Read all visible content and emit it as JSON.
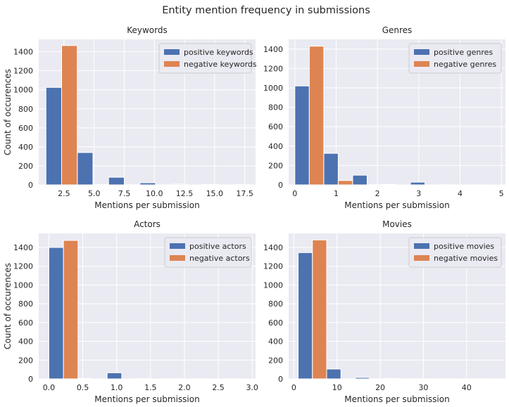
{
  "figure": {
    "suptitle": "Entity mention frequency in submissions"
  },
  "colors": {
    "positive": "#4C72B0",
    "negative": "#DD8452",
    "background": "#EAEAF2",
    "grid": "#FFFFFF"
  },
  "chart_data": [
    {
      "type": "bar",
      "title": "Keywords",
      "xlabel": "Mentions per submission",
      "ylabel": "Count of occurences",
      "xlim": [
        0.4,
        18.4
      ],
      "ylim": [
        0,
        1530
      ],
      "xticks": [
        2.5,
        5.0,
        7.5,
        10.0,
        12.5,
        15.0,
        17.5
      ],
      "xtick_labels": [
        "2.5",
        "5.0",
        "7.5",
        "10.0",
        "12.5",
        "15.0",
        "17.5"
      ],
      "yticks": [
        0,
        200,
        400,
        600,
        800,
        1000,
        1200,
        1400
      ],
      "bin_edges": [
        1,
        3.6,
        6.2,
        8.8,
        11.4,
        14,
        16.6,
        19.2
      ],
      "series": [
        {
          "name": "positive keywords",
          "values": [
            1025,
            340,
            80,
            22,
            8,
            5,
            3
          ]
        },
        {
          "name": "negative keywords",
          "values": [
            1465,
            5,
            2,
            1,
            0,
            0,
            0
          ]
        }
      ],
      "legend": "top-right",
      "grid": true
    },
    {
      "type": "bar",
      "title": "Genres",
      "xlabel": "Mentions per submission",
      "ylabel": "",
      "xlim": [
        -0.15,
        5.1
      ],
      "ylim": [
        0,
        1500
      ],
      "xticks": [
        0,
        1,
        2,
        3,
        4,
        5
      ],
      "xtick_labels": [
        "0",
        "1",
        "2",
        "3",
        "4",
        "5"
      ],
      "yticks": [
        0,
        200,
        400,
        600,
        800,
        1000,
        1200,
        1400
      ],
      "bin_edges": [
        0,
        0.7,
        1.4,
        2.1,
        2.8,
        3.5,
        4.2,
        4.9
      ],
      "series": [
        {
          "name": "positive genres",
          "values": [
            1020,
            325,
            100,
            5,
            28,
            2,
            1
          ]
        },
        {
          "name": "negative genres",
          "values": [
            1430,
            45,
            2,
            0,
            0,
            0,
            0
          ]
        }
      ],
      "legend": "top-right",
      "grid": true
    },
    {
      "type": "bar",
      "title": "Actors",
      "xlabel": "Mentions per submission",
      "ylabel": "Count of occurences",
      "xlim": [
        -0.15,
        3.05
      ],
      "ylim": [
        0,
        1550
      ],
      "xticks": [
        0.0,
        0.5,
        1.0,
        1.5,
        2.0,
        2.5,
        3.0
      ],
      "xtick_labels": [
        "0.0",
        "0.5",
        "1.0",
        "1.5",
        "2.0",
        "2.5",
        "3.0"
      ],
      "yticks": [
        0,
        200,
        400,
        600,
        800,
        1000,
        1200,
        1400
      ],
      "bin_edges": [
        0,
        0.43,
        0.86,
        1.29,
        1.72,
        2.15,
        2.58,
        3.01
      ],
      "series": [
        {
          "name": "positive actors",
          "values": [
            1400,
            5,
            65,
            3,
            2,
            1,
            1
          ]
        },
        {
          "name": "negative actors",
          "values": [
            1475,
            0,
            0,
            0,
            0,
            0,
            0
          ]
        }
      ],
      "legend": "top-right",
      "grid": true
    },
    {
      "type": "bar",
      "title": "Movies",
      "xlabel": "Mentions per submission",
      "ylabel": "",
      "xlim": [
        -1.2,
        49
      ],
      "ylim": [
        0,
        1550
      ],
      "xticks": [
        0,
        10,
        20,
        30,
        40
      ],
      "xtick_labels": [
        "0",
        "10",
        "20",
        "30",
        "40"
      ],
      "yticks": [
        0,
        200,
        400,
        600,
        800,
        1000,
        1200,
        1400
      ],
      "bin_edges": [
        1,
        7.6,
        14.2,
        20.8,
        27.4,
        34,
        40.6,
        47.2
      ],
      "series": [
        {
          "name": "positive movies",
          "values": [
            1345,
            105,
            15,
            5,
            2,
            1,
            1
          ]
        },
        {
          "name": "negative movies",
          "values": [
            1480,
            2,
            1,
            0,
            0,
            0,
            0
          ]
        }
      ],
      "legend": "top-right",
      "grid": true
    }
  ]
}
